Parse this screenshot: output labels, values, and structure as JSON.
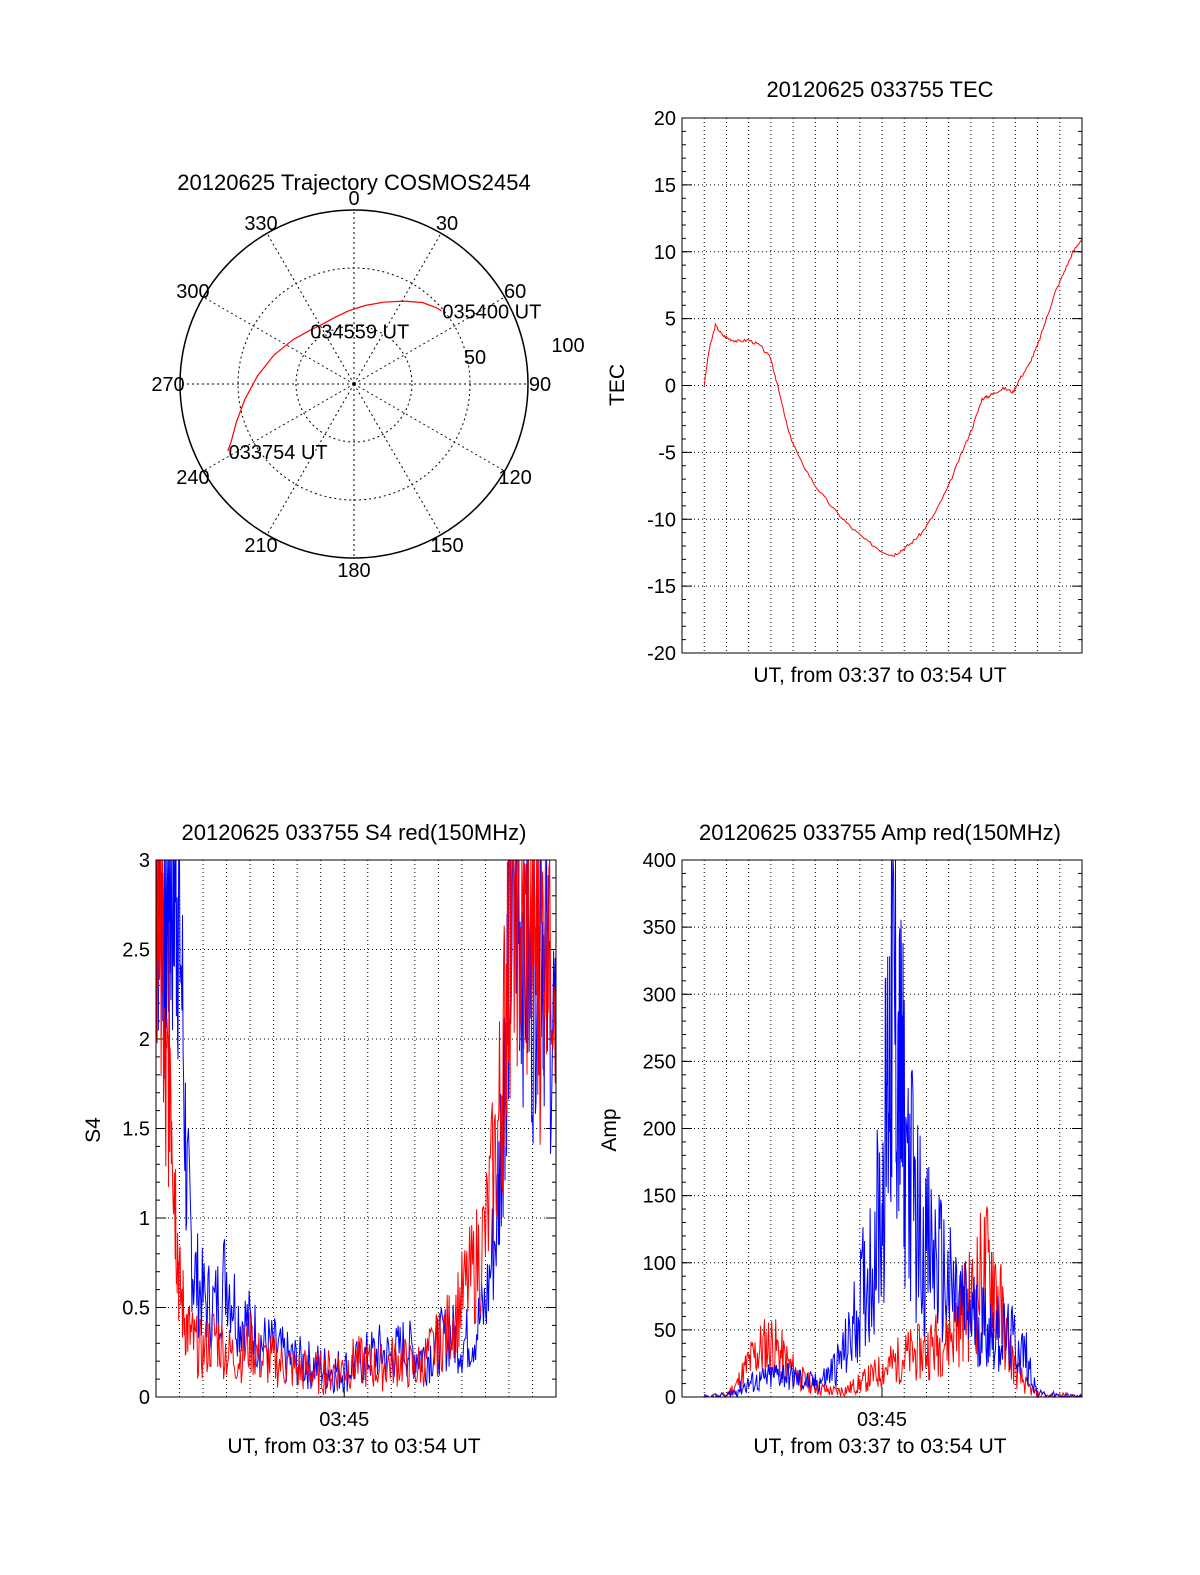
{
  "colors": {
    "red": "#ff0000",
    "blue": "#0000ff",
    "axis": "#000000",
    "grid": "#000000"
  },
  "chart_data": [
    {
      "id": "trajectory",
      "type": "polar",
      "title": "20120625 Trajectory COSMOS2454",
      "azimuth_labels": [
        "0",
        "30",
        "60",
        "90",
        "120",
        "150",
        "180",
        "210",
        "240",
        "270",
        "300",
        "330"
      ],
      "radial_labels": [
        "50",
        "100"
      ],
      "radial_label_values": [
        50,
        100
      ],
      "elevation_max": 90,
      "series": [
        {
          "color": "#ff0000",
          "points": [
            {
              "az": 242,
              "el": 16
            },
            {
              "az": 245,
              "el": 20
            },
            {
              "az": 252,
              "el": 26
            },
            {
              "az": 262,
              "el": 33
            },
            {
              "az": 275,
              "el": 40
            },
            {
              "az": 290,
              "el": 46
            },
            {
              "az": 306,
              "el": 51
            },
            {
              "az": 320,
              "el": 54
            },
            {
              "az": 333,
              "el": 55
            },
            {
              "az": 345,
              "el": 54
            },
            {
              "az": 356,
              "el": 52
            },
            {
              "az": 8,
              "el": 49
            },
            {
              "az": 20,
              "el": 45
            },
            {
              "az": 31,
              "el": 40
            },
            {
              "az": 40,
              "el": 35
            },
            {
              "az": 47,
              "el": 32
            },
            {
              "az": 50,
              "el": 31
            }
          ]
        }
      ],
      "annotations": [
        {
          "text": "033754 UT",
          "az": 242,
          "el": 16
        },
        {
          "text": "034559 UT",
          "az": 320,
          "el": 54
        },
        {
          "text": "035400 UT",
          "az": 50,
          "el": 31
        }
      ]
    },
    {
      "id": "tec",
      "type": "line",
      "title": "20120625 033755 TEC",
      "xlabel": "UT, from 03:37 to 03:54 UT",
      "ylabel": "TEC",
      "x_unit": "minutes after 03:37",
      "xlim": [
        -1,
        17
      ],
      "ylim": [
        -20,
        20
      ],
      "yticks": [
        -20,
        -15,
        -10,
        -5,
        0,
        5,
        10,
        15,
        20
      ],
      "grid": true,
      "series": [
        {
          "color": "#ff0000",
          "x": [
            0,
            0.2,
            0.5,
            0.8,
            1.1,
            1.5,
            2.0,
            2.5,
            3.0,
            3.3,
            3.8,
            4.3,
            5.0,
            5.8,
            6.6,
            7.3,
            8.0,
            8.5,
            8.9,
            9.3,
            9.8,
            10.4,
            11.0,
            11.6,
            12.1,
            12.5,
            12.8,
            13.1,
            13.5,
            13.9,
            14.2,
            14.6,
            15.0,
            15.4,
            15.8,
            16.2,
            16.6,
            17.0
          ],
          "y": [
            0,
            2.5,
            4.5,
            3.8,
            3.5,
            3.3,
            3.4,
            3.0,
            2.0,
            0,
            -3.5,
            -5.5,
            -7.5,
            -9.2,
            -10.6,
            -11.6,
            -12.4,
            -12.7,
            -12.3,
            -11.8,
            -11.0,
            -9.5,
            -7.5,
            -5.0,
            -3.0,
            -1.0,
            -0.8,
            -0.5,
            -0.2,
            -0.5,
            0.5,
            1.5,
            3.0,
            5.0,
            7.0,
            8.5,
            10.0,
            11.0
          ]
        }
      ]
    },
    {
      "id": "s4",
      "type": "line",
      "title": "20120625 033755 S4 red(150MHz)",
      "xlabel": "UT, from 03:37 to 03:54 UT",
      "ylabel": "S4",
      "x_unit": "minutes after 03:37",
      "xlim": [
        0,
        17
      ],
      "ylim": [
        0,
        3
      ],
      "yticks": [
        0,
        0.5,
        1,
        1.5,
        2,
        2.5,
        3
      ],
      "ytick_labels": [
        "0",
        "0.5",
        "1",
        "1.5",
        "2",
        "2.5",
        "3"
      ],
      "xtick_value": 8,
      "xtick_label": "03:45",
      "grid": true,
      "series": [
        {
          "color": "#0000ff",
          "x": [
            0.0,
            0.2,
            0.4,
            0.6,
            0.8,
            1.0,
            1.3,
            1.6,
            2.0,
            2.5,
            3.0,
            3.5,
            4.0,
            4.5,
            5.0,
            5.5,
            6.0,
            6.5,
            7.0,
            7.5,
            8.0,
            8.5,
            9.0,
            9.5,
            10.0,
            10.5,
            11.0,
            11.5,
            12.0,
            12.5,
            13.0,
            13.5,
            14.0,
            14.5,
            14.8,
            15.0,
            15.3,
            15.6,
            16.0,
            16.3,
            16.6,
            17.0
          ],
          "y": [
            3.0,
            3.0,
            2.6,
            3.0,
            3.0,
            2.8,
            1.2,
            0.7,
            0.55,
            0.5,
            0.7,
            0.45,
            0.4,
            0.3,
            0.28,
            0.22,
            0.2,
            0.18,
            0.17,
            0.15,
            0.15,
            0.18,
            0.22,
            0.25,
            0.22,
            0.28,
            0.25,
            0.22,
            0.3,
            0.35,
            0.3,
            0.35,
            0.5,
            1.0,
            1.8,
            2.5,
            3.0,
            2.6,
            2.2,
            3.0,
            2.3,
            2.0
          ]
        },
        {
          "color": "#ff0000",
          "x": [
            0.0,
            0.2,
            0.4,
            0.6,
            0.8,
            1.0,
            1.3,
            1.6,
            2.0,
            2.5,
            3.0,
            3.5,
            4.0,
            4.5,
            5.0,
            5.5,
            6.0,
            6.5,
            7.0,
            7.5,
            8.0,
            8.5,
            9.0,
            9.5,
            10.0,
            10.5,
            11.0,
            11.5,
            12.0,
            12.5,
            13.0,
            13.5,
            14.0,
            14.5,
            14.8,
            15.0,
            15.3,
            15.6,
            16.0,
            16.3,
            16.6,
            17.0
          ],
          "y": [
            2.5,
            3.0,
            1.5,
            2.0,
            1.2,
            0.6,
            0.4,
            0.3,
            0.25,
            0.35,
            0.25,
            0.22,
            0.3,
            0.2,
            0.2,
            0.18,
            0.15,
            0.15,
            0.13,
            0.15,
            0.16,
            0.2,
            0.18,
            0.16,
            0.2,
            0.2,
            0.15,
            0.22,
            0.3,
            0.4,
            0.55,
            0.7,
            0.9,
            1.4,
            2.0,
            2.6,
            3.0,
            2.4,
            2.8,
            2.2,
            3.0,
            2.6
          ]
        }
      ]
    },
    {
      "id": "amp",
      "type": "line",
      "title": "20120625 033755 Amp red(150MHz)",
      "xlabel": "UT, from 03:37 to 03:54 UT",
      "ylabel": "Amp",
      "x_unit": "minutes after 03:37",
      "xlim": [
        -1,
        17
      ],
      "ylim": [
        0,
        400
      ],
      "yticks": [
        0,
        50,
        100,
        150,
        200,
        250,
        300,
        350,
        400
      ],
      "xtick_value": 8,
      "xtick_label": "03:45",
      "grid": true,
      "series": [
        {
          "color": "#ff0000",
          "x": [
            0,
            1,
            1.5,
            2,
            2.5,
            3,
            3.5,
            4,
            4.5,
            5,
            5.5,
            6,
            6.5,
            7,
            7.5,
            8,
            8.5,
            9,
            9.5,
            10,
            10.5,
            11,
            11.5,
            12,
            12.5,
            13,
            13.5,
            14,
            14.5,
            15,
            16,
            17
          ],
          "y": [
            0,
            1,
            10,
            25,
            35,
            40,
            30,
            20,
            12,
            8,
            5,
            4,
            6,
            10,
            15,
            20,
            25,
            30,
            32,
            35,
            40,
            45,
            60,
            70,
            90,
            95,
            50,
            20,
            8,
            2,
            1,
            0
          ]
        },
        {
          "color": "#0000ff",
          "x": [
            0,
            1,
            1.5,
            2,
            2.5,
            3,
            3.5,
            4,
            4.5,
            5,
            5.5,
            6,
            6.5,
            7,
            7.5,
            8,
            8.3,
            8.5,
            8.8,
            9,
            9.5,
            10,
            10.5,
            11,
            11.5,
            12,
            12.5,
            13,
            13.5,
            14,
            14.5,
            15,
            16,
            17
          ],
          "y": [
            0,
            1,
            5,
            10,
            12,
            15,
            18,
            14,
            12,
            10,
            15,
            25,
            40,
            70,
            100,
            150,
            250,
            310,
            240,
            200,
            140,
            110,
            100,
            80,
            70,
            60,
            55,
            50,
            45,
            40,
            30,
            2,
            1,
            0
          ]
        }
      ]
    }
  ]
}
